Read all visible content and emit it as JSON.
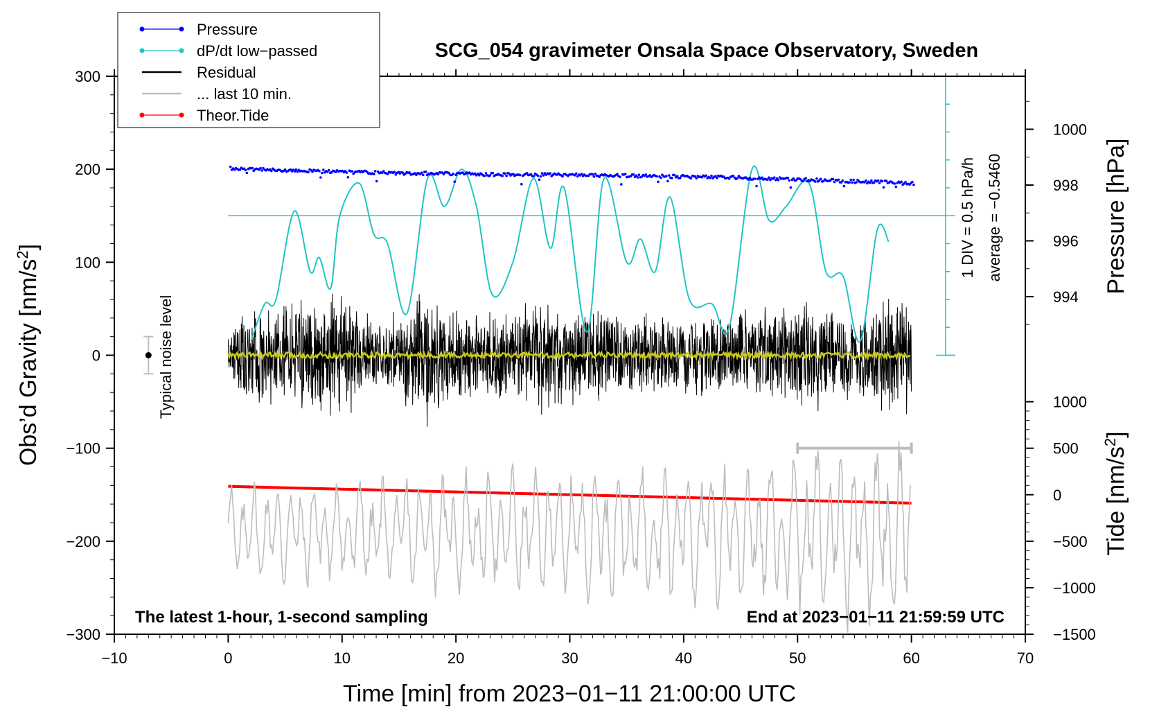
{
  "chart_data": {
    "type": "line",
    "title": "SCG_054 gravimeter Onsala Space Observatory, Sweden",
    "xlabel": "Time [min] from 2023−01−11 21:00:00 UTC",
    "ylabel": "Obs'd Gravity [nm/s2]",
    "ylabel_main": "Obs’d Gravity [nm/s",
    "ylabel_sup": "2",
    "ylabel_end": "]",
    "y2label": "Pressure [hPa]",
    "y3label_main": "Tide [nm/s",
    "y3label_sup": "2",
    "y3label_end": "]",
    "xlim": [
      -10,
      70
    ],
    "ylim": [
      -300,
      300
    ],
    "x_ticks": [
      "−10",
      "0",
      "10",
      "20",
      "30",
      "40",
      "50",
      "60",
      "70"
    ],
    "x_tick_values": [
      -10,
      0,
      10,
      20,
      30,
      40,
      50,
      60,
      70
    ],
    "y_ticks": [
      "300",
      "200",
      "100",
      "0",
      "−100",
      "−200",
      "−300"
    ],
    "y_tick_values": [
      300,
      200,
      100,
      0,
      -100,
      -200,
      -300
    ],
    "pressure_axis": {
      "label": "Pressure [hPa]",
      "ticks": [
        "1000",
        "998",
        "996",
        "994"
      ],
      "tick_values": [
        1000,
        998,
        996,
        994
      ],
      "range_gravity_units": [
        0,
        300
      ],
      "hpa_range": [
        991.9,
        1001.9
      ]
    },
    "tide_axis": {
      "label": "Tide [nm/s2]",
      "ticks": [
        "1000",
        "500",
        "0",
        "−500",
        "−1000",
        "−1500"
      ],
      "tick_values": [
        1000,
        500,
        0,
        -500,
        -1000,
        -1500
      ]
    },
    "dpdt_scale": {
      "div_label": "1 DIV = 0.5 hPa/h",
      "average_label": "average = −0.5460",
      "average_level": 150,
      "x_position": 63
    },
    "noise_indicator": {
      "label": "Typical noise level",
      "x": -7,
      "y": 0,
      "half_range": 20
    },
    "last10_bar": {
      "x_start": 50,
      "x_end": 60,
      "y": -100
    },
    "annotation_left": "The latest 1-hour, 1-second sampling",
    "annotation_right": "End at 2023−01−11 21:59:59 UTC",
    "legend": [
      {
        "label": "Pressure",
        "color": "#0000ff",
        "marker": "dot"
      },
      {
        "label": "dP/dt low−passed",
        "color": "#22c4c4",
        "marker": "dot"
      },
      {
        "label": "Residual",
        "color": "#000000",
        "marker": "line"
      },
      {
        "label": "... last 10 min.",
        "color": "#bdbdbd",
        "marker": "line"
      },
      {
        "label": "Theor.Tide",
        "color": "#ff0000",
        "marker": "dot"
      }
    ],
    "series": [
      {
        "name": "Pressure",
        "color": "#0000ff",
        "x": [
          0,
          5,
          10,
          15,
          20,
          25,
          30,
          35,
          40,
          45,
          50,
          55,
          60
        ],
        "values": [
          201,
          199,
          197,
          196,
          195,
          194,
          194,
          193,
          192,
          191,
          189,
          187,
          185
        ]
      },
      {
        "name": "dP/dt low−passed",
        "color": "#22c4c4",
        "x": [
          2,
          3.2,
          4.2,
          5.8,
          7.2,
          8,
          9,
          9.8,
          11.5,
          12.8,
          14,
          15.7,
          17.5,
          19,
          20.5,
          21.8,
          23.2,
          25,
          26.8,
          28.3,
          29.5,
          31.5,
          33,
          35,
          36.2,
          37.5,
          38.8,
          40.5,
          42.5,
          44,
          46,
          47.5,
          49,
          51,
          52.5,
          54,
          55.5,
          57,
          58
        ],
        "values": [
          15,
          55,
          60,
          155,
          90,
          105,
          72,
          150,
          185,
          130,
          120,
          45,
          190,
          160,
          200,
          160,
          65,
          100,
          190,
          115,
          180,
          25,
          190,
          100,
          125,
          90,
          170,
          60,
          55,
          30,
          200,
          145,
          160,
          185,
          90,
          85,
          15,
          135,
          122
        ]
      },
      {
        "name": "Residual",
        "color": "#000000",
        "x_range": [
          0,
          60
        ],
        "envelope": [
          {
            "x": 0,
            "amp": 50
          },
          {
            "x": 4,
            "amp": 75
          },
          {
            "x": 10.5,
            "amp": 90
          },
          {
            "x": 13,
            "amp": 40
          },
          {
            "x": 17.5,
            "amp": 95
          },
          {
            "x": 22,
            "amp": 55
          },
          {
            "x": 27,
            "amp": 80
          },
          {
            "x": 33,
            "amp": 65
          },
          {
            "x": 40,
            "amp": 55
          },
          {
            "x": 46,
            "amp": 60
          },
          {
            "x": 50,
            "amp": 80
          },
          {
            "x": 55,
            "amp": 60
          },
          {
            "x": 60,
            "amp": 85
          }
        ]
      },
      {
        "name": "... last 10 min.",
        "color": "#bdbdbd",
        "x_range": [
          0,
          60
        ],
        "center": -190,
        "amp_start": 55,
        "amp_end": 90
      },
      {
        "name": "Theor.Tide",
        "color": "#ff0000",
        "x": [
          0,
          60
        ],
        "values": [
          -141,
          -159
        ]
      },
      {
        "name": "Residual low-pass",
        "color": "#c8c81e",
        "x_range": [
          0,
          60
        ],
        "values_level": 0
      }
    ]
  }
}
